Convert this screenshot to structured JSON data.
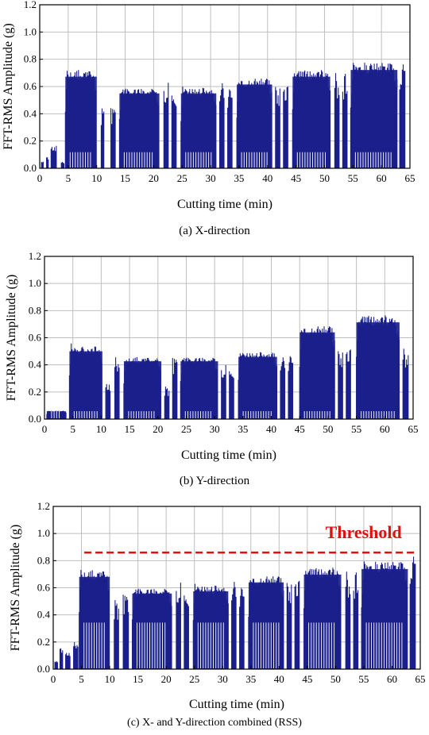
{
  "chart_data": [
    {
      "type": "bar",
      "id": "a",
      "caption": "(a) X-direction",
      "xlabel": "Cutting time (min)",
      "ylabel": "FFT-RMS Amplitude (g)",
      "xlim": [
        0,
        65
      ],
      "ylim": [
        0,
        1.2
      ],
      "xticks": [
        "0",
        "5",
        "10",
        "15",
        "20",
        "25",
        "30",
        "35",
        "40",
        "45",
        "50",
        "55",
        "60",
        "65"
      ],
      "yticks": [
        "0.0",
        "0.2",
        "0.4",
        "0.6",
        "0.8",
        "1.0",
        "1.2"
      ],
      "grid": true,
      "series_color": "#1a1f8c",
      "low_level": 0.12,
      "segments": [
        {
          "x0": 0.3,
          "x1": 0.7,
          "peak": 0.05
        },
        {
          "x0": 1.2,
          "x1": 1.6,
          "peak": 0.09
        },
        {
          "x0": 2.0,
          "x1": 3.0,
          "peak": 0.17
        },
        {
          "x0": 3.8,
          "x1": 4.4,
          "peak": 0.05
        },
        {
          "x0": 4.5,
          "x1": 10.0,
          "peak": 0.82
        },
        {
          "x0": 10.8,
          "x1": 11.4,
          "peak": 0.44
        },
        {
          "x0": 12.5,
          "x1": 13.4,
          "peak": 0.45
        },
        {
          "x0": 14.0,
          "x1": 21.0,
          "peak": 0.67
        },
        {
          "x0": 21.8,
          "x1": 22.6,
          "peak": 0.63
        },
        {
          "x0": 23.2,
          "x1": 24.0,
          "peak": 0.62
        },
        {
          "x0": 24.8,
          "x1": 31.0,
          "peak": 0.67
        },
        {
          "x0": 31.6,
          "x1": 32.4,
          "peak": 0.63
        },
        {
          "x0": 33.0,
          "x1": 33.8,
          "peak": 0.6
        },
        {
          "x0": 34.6,
          "x1": 40.8,
          "peak": 0.75
        },
        {
          "x0": 41.4,
          "x1": 42.2,
          "peak": 0.62
        },
        {
          "x0": 42.8,
          "x1": 43.6,
          "peak": 0.61
        },
        {
          "x0": 44.4,
          "x1": 51.0,
          "peak": 0.82
        },
        {
          "x0": 51.8,
          "x1": 52.6,
          "peak": 0.7
        },
        {
          "x0": 53.2,
          "x1": 54.0,
          "peak": 0.7
        },
        {
          "x0": 54.6,
          "x1": 62.8,
          "peak": 0.88
        },
        {
          "x0": 63.2,
          "x1": 64.2,
          "peak": 0.8
        }
      ]
    },
    {
      "type": "bar",
      "id": "b",
      "caption": "(b) Y-direction",
      "xlabel": "Cutting time (min)",
      "ylabel": "FFT-RMS Amplitude (g)",
      "xlim": [
        0,
        65
      ],
      "ylim": [
        0,
        1.2
      ],
      "xticks": [
        "0",
        "5",
        "10",
        "15",
        "20",
        "25",
        "30",
        "35",
        "40",
        "45",
        "50",
        "55",
        "60",
        "65"
      ],
      "yticks": [
        "0.0",
        "0.2",
        "0.4",
        "0.6",
        "0.8",
        "1.0",
        "1.2"
      ],
      "grid": true,
      "series_color": "#1a1f8c",
      "low_level": 0.06,
      "segments": [
        {
          "x0": 0.4,
          "x1": 3.8,
          "peak": 0.07
        },
        {
          "x0": 4.4,
          "x1": 10.2,
          "peak": 0.61
        },
        {
          "x0": 10.8,
          "x1": 11.6,
          "peak": 0.28
        },
        {
          "x0": 12.4,
          "x1": 13.2,
          "peak": 0.48
        },
        {
          "x0": 14.0,
          "x1": 20.6,
          "peak": 0.52
        },
        {
          "x0": 21.2,
          "x1": 22.0,
          "peak": 0.24
        },
        {
          "x0": 22.6,
          "x1": 23.4,
          "peak": 0.46
        },
        {
          "x0": 24.0,
          "x1": 30.6,
          "peak": 0.52
        },
        {
          "x0": 31.2,
          "x1": 32.0,
          "peak": 0.4
        },
        {
          "x0": 32.6,
          "x1": 33.4,
          "peak": 0.41
        },
        {
          "x0": 34.2,
          "x1": 41.0,
          "peak": 0.56
        },
        {
          "x0": 41.6,
          "x1": 42.4,
          "peak": 0.46
        },
        {
          "x0": 43.0,
          "x1": 43.8,
          "peak": 0.48
        },
        {
          "x0": 45.0,
          "x1": 51.2,
          "peak": 0.78
        },
        {
          "x0": 51.8,
          "x1": 52.6,
          "peak": 0.52
        },
        {
          "x0": 53.2,
          "x1": 54.0,
          "peak": 0.52
        },
        {
          "x0": 55.0,
          "x1": 62.6,
          "peak": 0.87
        },
        {
          "x0": 63.2,
          "x1": 64.2,
          "peak": 0.52
        }
      ]
    },
    {
      "type": "bar",
      "id": "c",
      "caption": "(c) X- and Y-direction combined (RSS)",
      "xlabel": "Cutting time (min)",
      "ylabel": "FFT-RMS Amplitude (g)",
      "xlim": [
        0,
        65
      ],
      "ylim": [
        0,
        1.2
      ],
      "xticks": [
        "0",
        "5",
        "10",
        "15",
        "20",
        "25",
        "30",
        "35",
        "40",
        "45",
        "50",
        "55",
        "60",
        "65"
      ],
      "yticks": [
        "0.0",
        "0.2",
        "0.4",
        "0.6",
        "0.8",
        "1.0",
        "1.2"
      ],
      "grid": true,
      "series_color": "#1a1f8c",
      "low_level": 0.35,
      "threshold": {
        "label": "Threshold",
        "value": 0.86,
        "x0": 5.5,
        "x1": 64.5,
        "color": "#e01010"
      },
      "segments": [
        {
          "x0": 0.3,
          "x1": 0.8,
          "peak": 0.06
        },
        {
          "x0": 1.2,
          "x1": 1.7,
          "peak": 0.17
        },
        {
          "x0": 2.2,
          "x1": 3.0,
          "peak": 0.13
        },
        {
          "x0": 3.6,
          "x1": 4.4,
          "peak": 0.21
        },
        {
          "x0": 4.6,
          "x1": 10.0,
          "peak": 0.83
        },
        {
          "x0": 10.8,
          "x1": 11.6,
          "peak": 0.51
        },
        {
          "x0": 12.4,
          "x1": 13.4,
          "peak": 0.56
        },
        {
          "x0": 14.0,
          "x1": 21.0,
          "peak": 0.68
        },
        {
          "x0": 21.8,
          "x1": 22.6,
          "peak": 0.64
        },
        {
          "x0": 23.2,
          "x1": 24.0,
          "peak": 0.63
        },
        {
          "x0": 24.8,
          "x1": 31.0,
          "peak": 0.7
        },
        {
          "x0": 31.6,
          "x1": 32.4,
          "peak": 0.65
        },
        {
          "x0": 33.0,
          "x1": 33.8,
          "peak": 0.62
        },
        {
          "x0": 34.6,
          "x1": 40.8,
          "peak": 0.78
        },
        {
          "x0": 41.4,
          "x1": 42.2,
          "peak": 0.66
        },
        {
          "x0": 42.8,
          "x1": 43.6,
          "peak": 0.66
        },
        {
          "x0": 44.4,
          "x1": 51.0,
          "peak": 0.85
        },
        {
          "x0": 51.8,
          "x1": 52.6,
          "peak": 0.72
        },
        {
          "x0": 53.2,
          "x1": 54.0,
          "peak": 0.72
        },
        {
          "x0": 54.6,
          "x1": 62.8,
          "peak": 0.9
        },
        {
          "x0": 63.2,
          "x1": 64.2,
          "peak": 0.87
        }
      ]
    }
  ]
}
